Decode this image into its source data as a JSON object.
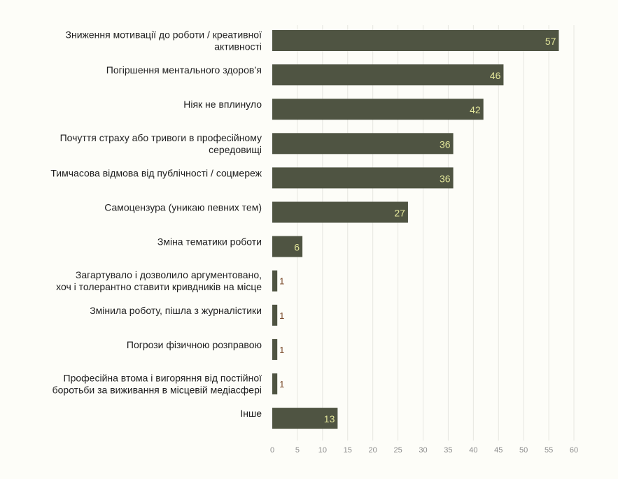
{
  "chart_data": {
    "type": "bar",
    "orientation": "horizontal",
    "title": "",
    "xlabel": "",
    "ylabel": "",
    "categories": [
      [
        "Зниження мотивації до роботи / креативної",
        "активності"
      ],
      [
        "Погіршення ментального здоров’я"
      ],
      [
        "Ніяк не вплинуло"
      ],
      [
        "Почуття страху або тривоги в професійному",
        "середовищі"
      ],
      [
        "Тимчасова відмова від публічності / соцмереж"
      ],
      [
        "Самоцензура (уникаю певних тем)"
      ],
      [
        "Зміна тематики роботи"
      ],
      [
        "Загартувало і дозволило аргументовано,",
        "хоч і толерантно ставити кривдників на місце"
      ],
      [
        "Змінила роботу, пішла з журналістики"
      ],
      [
        "Погрози фізичною розправою"
      ],
      [
        "Професійна втома і вигоряння від постійної",
        "боротьби за виживання в місцевій медіасфері"
      ],
      [
        "Інше"
      ]
    ],
    "values": [
      57,
      46,
      42,
      36,
      36,
      27,
      6,
      1,
      1,
      1,
      1,
      13
    ],
    "xlim": [
      0,
      60
    ],
    "xticks": [
      0,
      5,
      10,
      15,
      20,
      25,
      30,
      35,
      40,
      45,
      50,
      55,
      60
    ],
    "grid": true,
    "legend": "none",
    "colors": {
      "bar": "#4f5442",
      "value_label_inside": "#e3e69a",
      "value_label_outside": "#7a4a2a",
      "grid": "#e6e6e0",
      "background": "#fdfdf8"
    }
  }
}
